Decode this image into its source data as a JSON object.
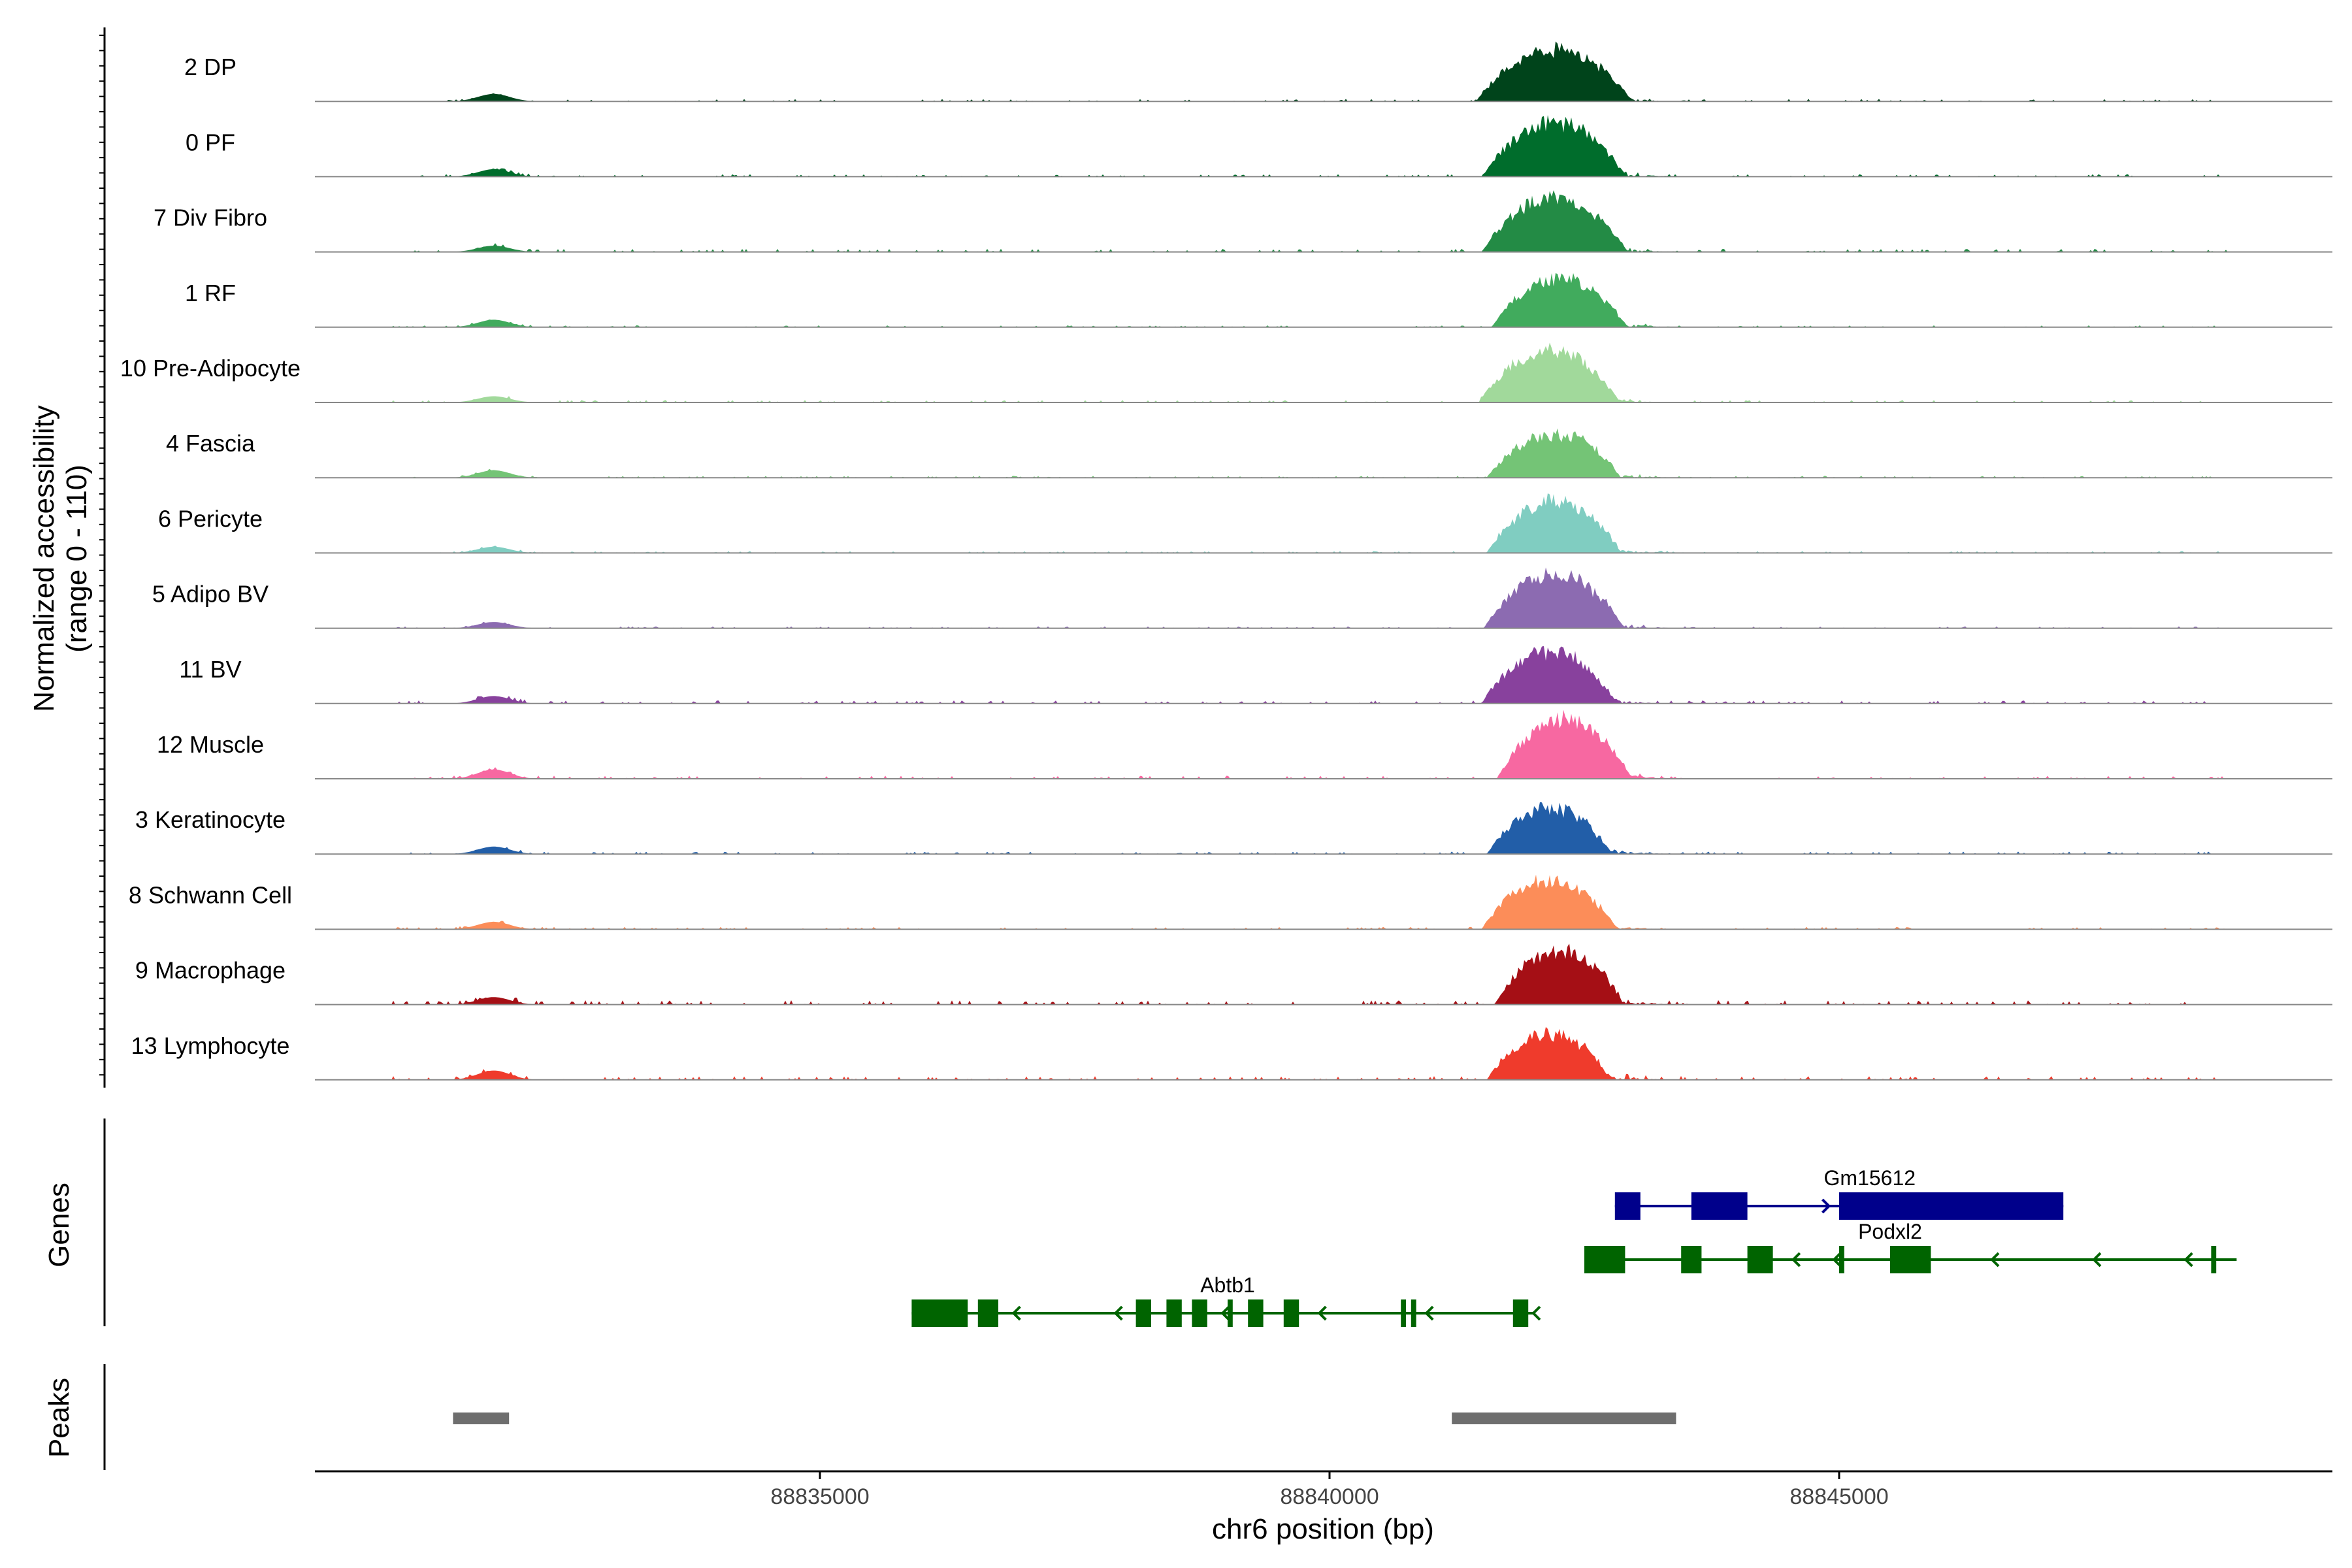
{
  "chart_data": {
    "type": "area",
    "title": "",
    "xlabel": "chr6 position (bp)",
    "xlim": [
      88830000,
      88849800
    ],
    "xticks": [
      88835000,
      88840000,
      88845000
    ],
    "xtick_labels": [
      "88835000",
      "88840000",
      "88845000"
    ],
    "tracks_ylabel_line1": "Normalized accessibility",
    "tracks_ylabel_line2": "(range 0 - 110)",
    "ylim": [
      0,
      110
    ],
    "tracks": [
      {
        "name": "2 DP",
        "color": "#00441b",
        "main_center": 88842200,
        "main_width": 600,
        "main_peak": 0.95,
        "side_peak": 0.12,
        "bg": 0.04,
        "seed": 1
      },
      {
        "name": "0 PF",
        "color": "#006d2c",
        "main_center": 88842200,
        "main_width": 550,
        "main_peak": 1.0,
        "side_peak": 0.12,
        "bg": 0.04,
        "seed": 2
      },
      {
        "name": "7 Div Fibro",
        "color": "#238b45",
        "main_center": 88842200,
        "main_width": 560,
        "main_peak": 1.0,
        "side_peak": 0.1,
        "bg": 0.05,
        "seed": 3
      },
      {
        "name": "1 RF",
        "color": "#41ab5d",
        "main_center": 88842250,
        "main_width": 520,
        "main_peak": 0.9,
        "side_peak": 0.12,
        "bg": 0.03,
        "seed": 4
      },
      {
        "name": "10 Pre-Adipocyte",
        "color": "#a1d99b",
        "main_center": 88842150,
        "main_width": 540,
        "main_peak": 0.95,
        "side_peak": 0.1,
        "bg": 0.04,
        "seed": 5
      },
      {
        "name": "4 Fascia",
        "color": "#74c476",
        "main_center": 88842200,
        "main_width": 520,
        "main_peak": 0.8,
        "side_peak": 0.12,
        "bg": 0.03,
        "seed": 6
      },
      {
        "name": "6 Pericyte",
        "color": "#80cdc1",
        "main_center": 88842200,
        "main_width": 520,
        "main_peak": 0.95,
        "side_peak": 0.1,
        "bg": 0.03,
        "seed": 7
      },
      {
        "name": "5 Adipo BV",
        "color": "#8c6bb1",
        "main_center": 88842200,
        "main_width": 540,
        "main_peak": 1.0,
        "side_peak": 0.1,
        "bg": 0.03,
        "seed": 8
      },
      {
        "name": "11 BV",
        "color": "#88419d",
        "main_center": 88842150,
        "main_width": 520,
        "main_peak": 0.95,
        "side_peak": 0.12,
        "bg": 0.05,
        "seed": 9
      },
      {
        "name": "12 Muscle",
        "color": "#f768a1",
        "main_center": 88842300,
        "main_width": 520,
        "main_peak": 1.1,
        "side_peak": 0.15,
        "bg": 0.05,
        "seed": 10
      },
      {
        "name": "3 Keratinocyte",
        "color": "#225ea8",
        "main_center": 88842150,
        "main_width": 480,
        "main_peak": 0.85,
        "side_peak": 0.12,
        "bg": 0.04,
        "seed": 11
      },
      {
        "name": "8 Schwann Cell",
        "color": "#fc8d59",
        "main_center": 88842150,
        "main_width": 520,
        "main_peak": 0.9,
        "side_peak": 0.12,
        "bg": 0.04,
        "seed": 12
      },
      {
        "name": "9 Macrophage",
        "color": "#a50f15",
        "main_center": 88842250,
        "main_width": 500,
        "main_peak": 1.0,
        "side_peak": 0.12,
        "bg": 0.07,
        "seed": 13
      },
      {
        "name": "13 Lymphocyte",
        "color": "#ef3b2c",
        "main_center": 88842150,
        "main_width": 480,
        "main_peak": 0.85,
        "side_peak": 0.15,
        "bg": 0.06,
        "seed": 14
      }
    ],
    "genes_label": "Genes",
    "genes": [
      {
        "name": "Gm15612",
        "color": "#00008b",
        "strand": "+",
        "row": 0,
        "start": 88842800,
        "end": 88847200,
        "label_pos": 88845300,
        "exons": [
          [
            88842800,
            88843050
          ],
          [
            88843550,
            88844100
          ],
          [
            88845000,
            88847200
          ]
        ],
        "arrows": [
          88842900,
          88844900
        ]
      },
      {
        "name": "Podxl2",
        "color": "#006400",
        "strand": "-",
        "row": 1,
        "start": 88842500,
        "end": 88848900,
        "label_pos": 88845500,
        "exons": [
          [
            88842500,
            88842900
          ],
          [
            88843450,
            88843650
          ],
          [
            88844100,
            88844350
          ],
          [
            88845000,
            88845050
          ],
          [
            88845500,
            88845900
          ],
          [
            88848650,
            88848700
          ]
        ],
        "arrows": [
          88844550,
          88844950,
          88846500,
          88847500,
          88848400
        ]
      },
      {
        "name": "Abtb1",
        "color": "#006400",
        "strand": "-",
        "row": 2,
        "start": 88835900,
        "end": 88842000,
        "label_pos": 88839000,
        "exons": [
          [
            88835900,
            88836450
          ],
          [
            88836550,
            88836750
          ],
          [
            88838100,
            88838250
          ],
          [
            88838400,
            88838550
          ],
          [
            88838650,
            88838800
          ],
          [
            88839000,
            88839050
          ],
          [
            88839200,
            88839350
          ],
          [
            88839550,
            88839700
          ],
          [
            88840700,
            88840750
          ],
          [
            88840800,
            88840850
          ],
          [
            88841800,
            88841950
          ]
        ],
        "arrows": [
          88836900,
          88837900,
          88838950,
          88839900,
          88840950,
          88842000
        ]
      }
    ],
    "peaks_label": "Peaks",
    "peaks": [
      [
        88831400,
        88831950
      ],
      [
        88841200,
        88843400
      ]
    ]
  }
}
